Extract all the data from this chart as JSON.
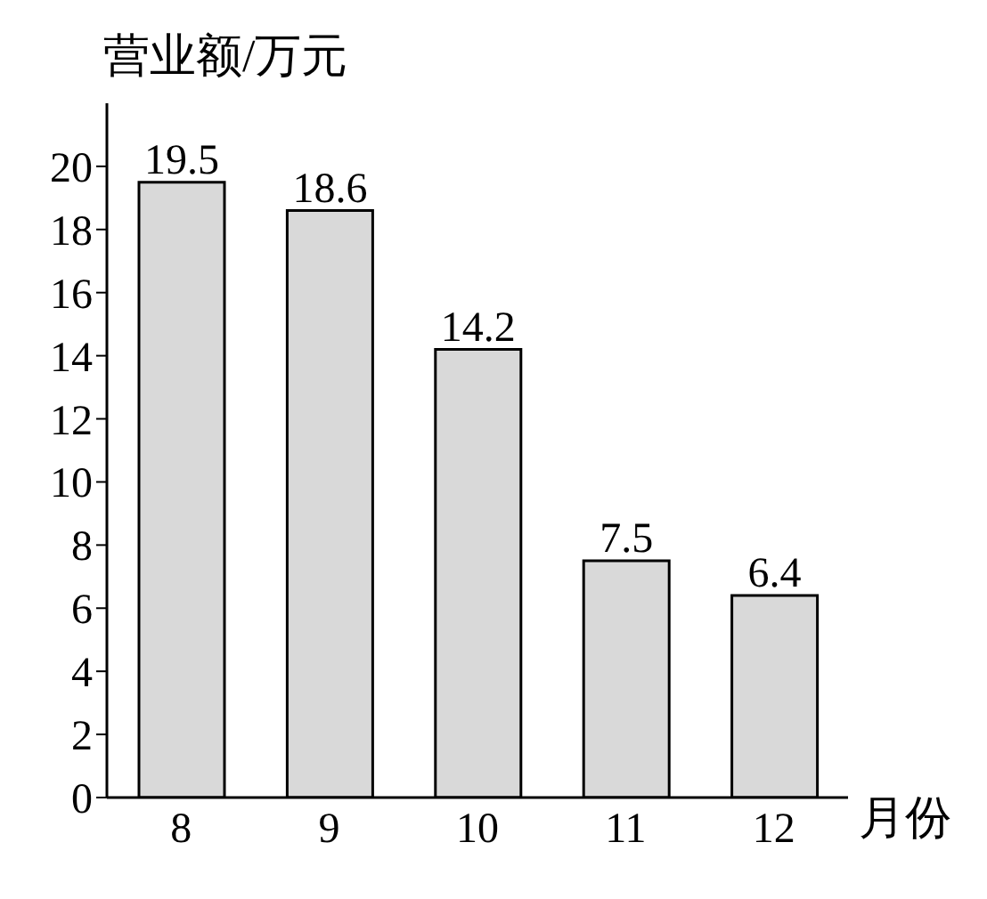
{
  "chart_data": {
    "type": "bar",
    "ylabel": "营业额/万元",
    "xlabel": "月份",
    "categories": [
      "8",
      "9",
      "10",
      "11",
      "12"
    ],
    "values": [
      19.5,
      18.6,
      14.2,
      7.5,
      6.4
    ],
    "color": "#d9d9d9",
    "ylim": [
      0,
      22
    ],
    "yticks": [
      0,
      2,
      4,
      6,
      8,
      10,
      12,
      14,
      16,
      18,
      20
    ],
    "data_labels": true,
    "grid": false
  }
}
